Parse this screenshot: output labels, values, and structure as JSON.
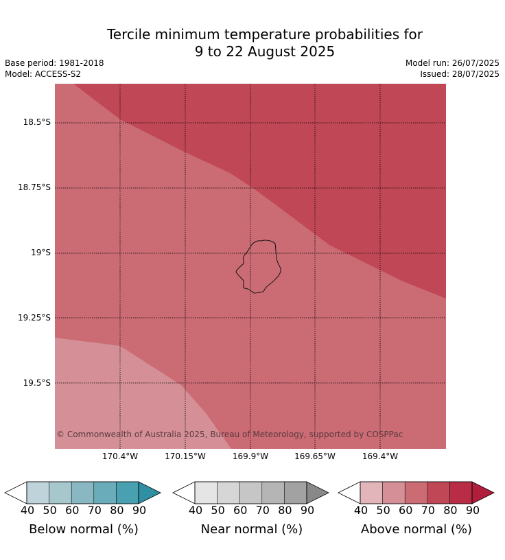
{
  "title": {
    "line1": "Tercile minimum temperature probabilities for",
    "line2": "9 to 22 August 2025"
  },
  "meta": {
    "base_period": "Base period: 1981-2018",
    "model": "Model: ACCESS-S2",
    "model_run": "Model run: 26/07/2025",
    "issued": "Issued: 28/07/2025"
  },
  "map": {
    "lat_ticks": [
      "18.5°S",
      "18.75°S",
      "19°S",
      "19.25°S",
      "19.5°S"
    ],
    "lon_ticks": [
      "170.4°W",
      "170.15°W",
      "169.9°W",
      "169.65°W",
      "169.4°W"
    ],
    "copyright": "© Commonwealth of Australia 2025, Bureau of Meteorology, supported by COSPPac",
    "fill_colors": {
      "above_50_60": "#d59097",
      "above_60_70": "#cb6b74",
      "above_70_80": "#c04856"
    }
  },
  "legend": {
    "tick_labels": [
      "40",
      "50",
      "60",
      "70",
      "80",
      "90"
    ],
    "colorbars": [
      {
        "label": "Below normal (%)",
        "colors": [
          "#ffffff",
          "#bfd4da",
          "#a6c7cc",
          "#89b7c2",
          "#6aacb9",
          "#48a0b1",
          "#2f8fa3"
        ]
      },
      {
        "label": "Near normal (%)",
        "colors": [
          "#ffffff",
          "#e5e5e5",
          "#d6d6d6",
          "#c6c6c6",
          "#b5b5b5",
          "#a2a2a2",
          "#888888"
        ]
      },
      {
        "label": "Above normal (%)",
        "colors": [
          "#ffffff",
          "#e2b5ba",
          "#d59097",
          "#cb6b74",
          "#c04856",
          "#b82d45",
          "#b01e3c"
        ]
      }
    ]
  }
}
